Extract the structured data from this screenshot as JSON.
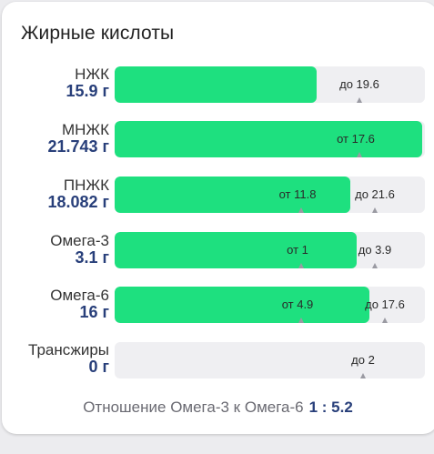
{
  "card": {
    "title": "Жирные кислоты"
  },
  "rows": [
    {
      "name": "НЖК",
      "amount": "15.9 г",
      "fill": 0.65,
      "min_label": "",
      "max_label": "до 19.6",
      "min_pos": null,
      "max_pos": 0.79
    },
    {
      "name": "МНЖК",
      "amount": "21.743 г",
      "fill": 0.99,
      "min_label": "от 17.6",
      "max_label": "",
      "min_pos": 0.79,
      "max_pos": null
    },
    {
      "name": "ПНЖК",
      "amount": "18.082 г",
      "fill": 0.76,
      "min_label": "от 11.8",
      "max_label": "до 21.6",
      "min_pos": 0.6,
      "max_pos": 0.84
    },
    {
      "name": "Омега-3",
      "amount": "3.1 г",
      "fill": 0.78,
      "min_label": "от 1",
      "max_label": "до 3.9",
      "min_pos": 0.6,
      "max_pos": 0.84
    },
    {
      "name": "Омега-6",
      "amount": "16 г",
      "fill": 0.82,
      "min_label": "от 4.9",
      "max_label": "до 17.6",
      "min_pos": 0.6,
      "max_pos": 0.87
    },
    {
      "name": "Трансжиры",
      "amount": "0 г",
      "fill": 0,
      "min_label": "",
      "max_label": "до 2",
      "min_pos": null,
      "max_pos": 0.8
    }
  ],
  "ratio": {
    "label": "Отношение Омега-3 к Омега-6",
    "value": "1 : 5.2"
  },
  "colors": {
    "fill": "#1ee07f",
    "track": "#efeff2",
    "amount": "#283f7a"
  }
}
